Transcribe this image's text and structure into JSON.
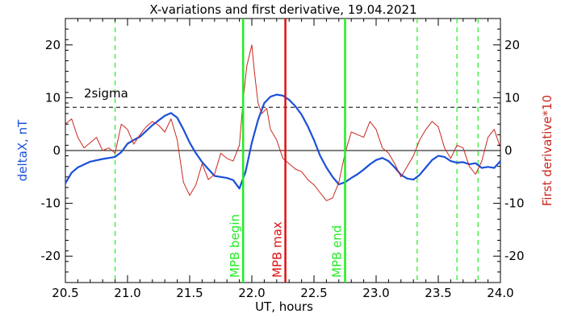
{
  "chart_data": {
    "type": "line",
    "title": "X-variations and first derivative, 19.04.2021",
    "xlabel": "UT, hours",
    "ylabel_left": "deltaX, nT",
    "ylabel_right": "First derivative*10",
    "xlim": [
      20.5,
      24.0
    ],
    "ylim": [
      -25,
      25
    ],
    "x_ticks": [
      "20.5",
      "21.0",
      "21.5",
      "22.0",
      "22.5",
      "23.0",
      "23.5",
      "24.0"
    ],
    "y_ticks": [
      "-20",
      "-10",
      "0",
      "10",
      "20"
    ],
    "sigma_label": "2sigma",
    "sigma_level": 8.2,
    "zero_level": 0,
    "colors": {
      "deltaX": "#1a4fd8",
      "derivative": "#c8281e",
      "mpb": "#22ee22",
      "mpb_max": "#dd1111",
      "axis": "#000000"
    },
    "series": [
      {
        "name": "deltaX, nT",
        "axis": "left",
        "x": [
          20.5,
          20.55,
          20.6,
          20.7,
          20.8,
          20.9,
          20.95,
          21.0,
          21.05,
          21.1,
          21.2,
          21.3,
          21.35,
          21.4,
          21.45,
          21.5,
          21.55,
          21.6,
          21.65,
          21.7,
          21.75,
          21.8,
          21.85,
          21.9,
          21.95,
          22.0,
          22.05,
          22.1,
          22.15,
          22.2,
          22.25,
          22.3,
          22.35,
          22.4,
          22.45,
          22.5,
          22.55,
          22.6,
          22.65,
          22.7,
          22.75,
          22.8,
          22.85,
          22.9,
          22.95,
          23.0,
          23.05,
          23.1,
          23.15,
          23.2,
          23.25,
          23.3,
          23.35,
          23.4,
          23.45,
          23.5,
          23.55,
          23.6,
          23.65,
          23.7,
          23.75,
          23.8,
          23.85,
          23.9,
          23.95,
          24.0
        ],
        "values": [
          -6.2,
          -4.2,
          -3.2,
          -2.1,
          -1.6,
          -1.2,
          -0.3,
          1.3,
          2.0,
          2.6,
          4.8,
          6.6,
          7.1,
          6.2,
          4.0,
          1.5,
          -0.5,
          -2.2,
          -3.5,
          -4.8,
          -5.0,
          -5.2,
          -5.6,
          -7.2,
          -4.0,
          1.5,
          5.8,
          9.0,
          10.2,
          10.6,
          10.4,
          9.6,
          8.4,
          6.8,
          4.6,
          2.0,
          -1.0,
          -3.2,
          -5.0,
          -6.4,
          -6.0,
          -5.2,
          -4.5,
          -3.6,
          -2.6,
          -1.8,
          -1.4,
          -2.0,
          -3.2,
          -4.6,
          -5.3,
          -5.5,
          -4.6,
          -3.2,
          -1.8,
          -1.0,
          -1.2,
          -2.0,
          -2.3,
          -2.2,
          -2.6,
          -2.4,
          -3.3,
          -3.1,
          -3.3,
          -2.0
        ]
      },
      {
        "name": "First derivative*10",
        "axis": "right",
        "x": [
          20.5,
          20.55,
          20.6,
          20.65,
          20.7,
          20.75,
          20.8,
          20.85,
          20.9,
          20.95,
          21.0,
          21.05,
          21.1,
          21.15,
          21.2,
          21.25,
          21.3,
          21.35,
          21.4,
          21.45,
          21.5,
          21.55,
          21.6,
          21.65,
          21.7,
          21.75,
          21.8,
          21.85,
          21.9,
          21.93,
          21.96,
          22.0,
          22.02,
          22.05,
          22.08,
          22.12,
          22.15,
          22.2,
          22.25,
          22.3,
          22.35,
          22.4,
          22.45,
          22.5,
          22.55,
          22.6,
          22.65,
          22.7,
          22.75,
          22.8,
          22.85,
          22.9,
          22.95,
          23.0,
          23.05,
          23.1,
          23.15,
          23.2,
          23.25,
          23.3,
          23.35,
          23.4,
          23.45,
          23.5,
          23.55,
          23.6,
          23.65,
          23.7,
          23.75,
          23.8,
          23.85,
          23.9,
          23.95,
          24.0
        ],
        "values": [
          5.0,
          6.0,
          2.5,
          0.5,
          1.5,
          2.5,
          0.0,
          0.5,
          -0.5,
          5.0,
          4.0,
          1.2,
          3.0,
          4.5,
          5.5,
          4.8,
          3.5,
          6.0,
          2.0,
          -6.0,
          -8.5,
          -6.5,
          -2.5,
          -5.5,
          -4.5,
          -0.5,
          -1.5,
          -2.0,
          1.0,
          9.5,
          16.0,
          20.0,
          15.0,
          9.0,
          7.0,
          8.0,
          4.0,
          2.0,
          -1.5,
          -2.5,
          -3.5,
          -4.0,
          -5.5,
          -6.5,
          -8.0,
          -9.5,
          -9.0,
          -6.0,
          -0.5,
          3.5,
          3.0,
          2.5,
          5.5,
          4.0,
          0.5,
          -0.5,
          -2.5,
          -5.0,
          -3.0,
          -1.0,
          2.0,
          4.0,
          5.5,
          4.5,
          0.5,
          -1.5,
          1.0,
          0.5,
          -3.0,
          -4.5,
          -2.0,
          2.5,
          4.0,
          0.5
        ]
      }
    ],
    "markers": [
      {
        "label": "MPB begin",
        "x": 21.93,
        "style": "solid",
        "color": "#22ee22",
        "text_color": "#22ee22"
      },
      {
        "label": "MPB max",
        "x": 22.27,
        "style": "solid",
        "color": "#dd1111",
        "text_color": "#dd1111"
      },
      {
        "label": "MPB end",
        "x": 22.75,
        "style": "solid",
        "color": "#22ee22",
        "text_color": "#22ee22"
      }
    ],
    "dashed_markers": [
      20.9,
      23.33,
      23.65,
      23.82
    ],
    "grid": false,
    "legend": "none"
  }
}
